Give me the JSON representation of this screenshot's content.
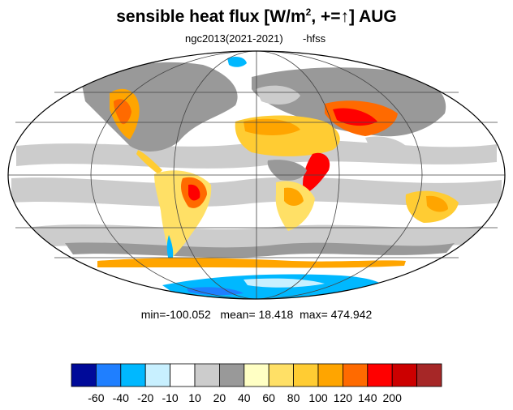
{
  "title": {
    "main": "sensible heat flux [W/m",
    "sup": "2",
    "suffix": ", +=↑]  AUG"
  },
  "subtitle": {
    "left": "ngc2013(2021-2021)",
    "right": "-hfss"
  },
  "stats": {
    "min_label": "min=",
    "min": "-100.052",
    "mean_label": "mean=",
    "mean": "18.418",
    "max_label": "max=",
    "max": "474.942"
  },
  "colorbar": {
    "colors": [
      "#000a99",
      "#1f7fff",
      "#00b8ff",
      "#c8f0ff",
      "#ffffff",
      "#cccccc",
      "#999999",
      "#ffffc4",
      "#ffe066",
      "#ffcc33",
      "#ffa500",
      "#ff6a00",
      "#ff0000",
      "#cc0000",
      "#a62727"
    ],
    "labels": [
      "-60",
      "-40",
      "-20",
      "-10",
      "10",
      "20",
      "40",
      "60",
      "80",
      "100",
      "120",
      "140",
      "200"
    ]
  },
  "map": {
    "projection": "mollweide",
    "gridlines": true,
    "land_color": "#ffffff"
  }
}
